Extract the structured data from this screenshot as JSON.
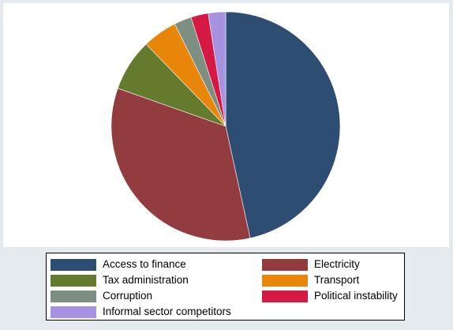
{
  "chart_data": {
    "type": "pie",
    "title": "",
    "start_angle": "12 o'clock",
    "direction": "clockwise",
    "legend_position": "bottom",
    "slices": [
      {
        "name": "Access to finance",
        "value": 47.5,
        "color": "#2e4d73"
      },
      {
        "name": "Electricity",
        "value": 34.5,
        "color": "#923c3f"
      },
      {
        "name": "Tax administration",
        "value": 7.5,
        "color": "#647a2d"
      },
      {
        "name": "Transport",
        "value": 5.0,
        "color": "#e8860a"
      },
      {
        "name": "Corruption",
        "value": 2.5,
        "color": "#7d8f83"
      },
      {
        "name": "Political instability",
        "value": 2.5,
        "color": "#d41942"
      },
      {
        "name": "Informal sector competitors",
        "value": 2.5,
        "color": "#a592e0"
      }
    ],
    "legend_order": [
      "Access to finance",
      "Electricity",
      "Tax administration",
      "Transport",
      "Corruption",
      "Political instability",
      "Informal sector competitors"
    ]
  }
}
